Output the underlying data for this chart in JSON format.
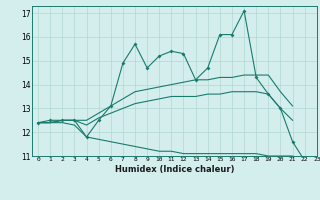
{
  "x": [
    0,
    1,
    2,
    3,
    4,
    5,
    6,
    7,
    8,
    9,
    10,
    11,
    12,
    13,
    14,
    15,
    16,
    17,
    18,
    19,
    20,
    21,
    22,
    23
  ],
  "line_main": [
    12.4,
    12.5,
    12.5,
    12.5,
    11.8,
    12.5,
    13.1,
    14.9,
    15.7,
    14.7,
    15.2,
    15.4,
    15.3,
    14.2,
    14.7,
    16.1,
    16.1,
    17.1,
    14.3,
    13.6,
    13.0,
    11.6,
    10.8,
    null
  ],
  "line_upper": [
    12.4,
    12.4,
    12.5,
    12.5,
    12.5,
    12.8,
    13.1,
    13.4,
    13.7,
    13.8,
    13.9,
    14.0,
    14.1,
    14.2,
    14.2,
    14.3,
    14.3,
    14.4,
    14.4,
    14.4,
    13.7,
    13.1,
    null,
    null
  ],
  "line_mid": [
    12.4,
    12.4,
    12.5,
    12.5,
    12.3,
    12.6,
    12.8,
    13.0,
    13.2,
    13.3,
    13.4,
    13.5,
    13.5,
    13.5,
    13.6,
    13.6,
    13.7,
    13.7,
    13.7,
    13.6,
    13.0,
    12.5,
    null,
    null
  ],
  "line_lower": [
    12.4,
    12.4,
    12.4,
    12.3,
    11.8,
    11.7,
    11.6,
    11.5,
    11.4,
    11.3,
    11.2,
    11.2,
    11.1,
    11.1,
    11.1,
    11.1,
    11.1,
    11.1,
    11.1,
    11.0,
    11.0,
    11.0,
    10.8,
    null
  ],
  "color": "#1a7a6e",
  "bg_color": "#d4eeed",
  "grid_color": "#b2d8d4",
  "xlabel": "Humidex (Indice chaleur)",
  "xlim": [
    -0.5,
    23
  ],
  "ylim": [
    11,
    17.3
  ],
  "yticks": [
    11,
    12,
    13,
    14,
    15,
    16,
    17
  ],
  "xticks": [
    0,
    1,
    2,
    3,
    4,
    5,
    6,
    7,
    8,
    9,
    10,
    11,
    12,
    13,
    14,
    15,
    16,
    17,
    18,
    19,
    20,
    21,
    22,
    23
  ]
}
